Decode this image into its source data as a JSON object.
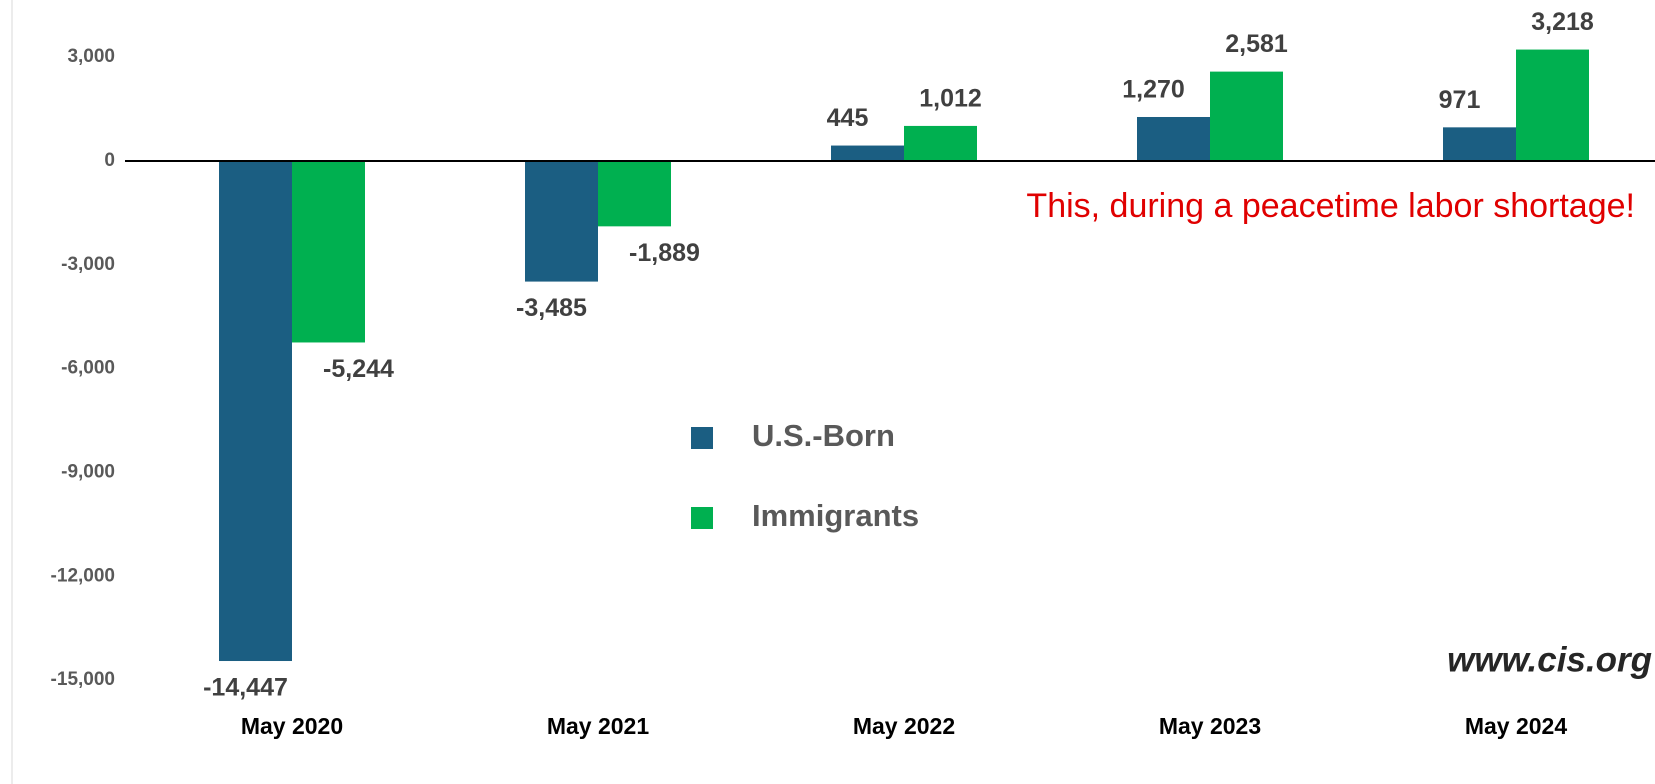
{
  "chart_data": {
    "type": "bar",
    "categories": [
      "May 2020",
      "May 2021",
      "May 2022",
      "May 2023",
      "May 2024"
    ],
    "series": [
      {
        "name": "U.S.-Born",
        "color": "#1b5e82",
        "values": [
          -14447,
          -3485,
          445,
          1270,
          971
        ],
        "value_labels": [
          "-14,447",
          "-3,485",
          "445",
          "1,270",
          "971"
        ]
      },
      {
        "name": "Immigrants",
        "color": "#00b050",
        "values": [
          -5244,
          -1889,
          1012,
          2581,
          3218
        ],
        "value_labels": [
          "-5,244",
          "-1,889",
          "1,012",
          "2,581",
          "3,218"
        ]
      }
    ],
    "ylim": [
      -18000,
      4650
    ],
    "yticks": [
      {
        "value": 3000,
        "label": "3,000"
      },
      0,
      {
        "value": -3000,
        "label": "-3,000"
      },
      {
        "value": -6000,
        "label": "-6,000"
      },
      {
        "value": -9000,
        "label": "-9,000"
      },
      {
        "value": -12000,
        "label": "-12,000"
      },
      {
        "value": -15000,
        "label": "-15,000"
      }
    ],
    "grid": false,
    "annotations": [
      "This, during a peacetime labor shortage!",
      "www.cis.org"
    ]
  }
}
